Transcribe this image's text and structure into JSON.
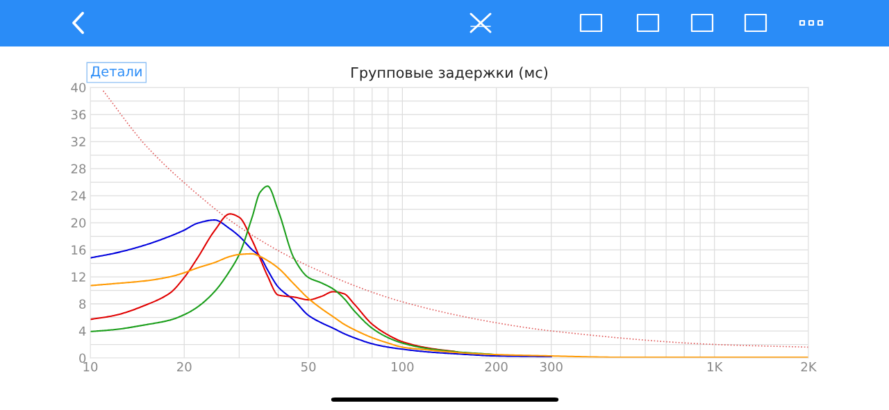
{
  "chart_data": {
    "type": "line",
    "title": "Групповые задержки (мс)",
    "annotations": [
      "Детали"
    ],
    "log": "x",
    "grid": true,
    "marker": "none",
    "xlim": [
      10,
      2000
    ],
    "ylim": [
      0,
      40
    ],
    "xticks": [
      10,
      20,
      {
        "value": 30,
        "label": null
      },
      {
        "value": 40,
        "label": null
      },
      50,
      {
        "value": 60,
        "label": null
      },
      {
        "value": 70,
        "label": null
      },
      {
        "value": 80,
        "label": null
      },
      {
        "value": 90,
        "label": null
      },
      100,
      200,
      300,
      {
        "value": 400,
        "label": null
      },
      {
        "value": 500,
        "label": null
      },
      {
        "value": 600,
        "label": null
      },
      {
        "value": 700,
        "label": null
      },
      {
        "value": 800,
        "label": null
      },
      {
        "value": 900,
        "label": null
      },
      {
        "value": 1000,
        "label": "1K"
      },
      {
        "value": 2000,
        "label": "2K"
      }
    ],
    "yticks": [
      0,
      {
        "value": 2,
        "label": null
      },
      4,
      {
        "value": 6,
        "label": null
      },
      8,
      {
        "value": 10,
        "label": null
      },
      12,
      {
        "value": 14,
        "label": null
      },
      16,
      {
        "value": 18,
        "label": null
      },
      20,
      {
        "value": 22,
        "label": null
      },
      24,
      {
        "value": 26,
        "label": null
      },
      28,
      {
        "value": 30,
        "label": null
      },
      32,
      {
        "value": 34,
        "label": null
      },
      36,
      {
        "value": 38,
        "label": null
      },
      40
    ],
    "x": [
      10,
      12,
      15,
      18,
      20,
      22,
      25,
      28,
      30,
      33,
      35,
      37,
      40,
      45,
      50,
      55,
      60,
      65,
      70,
      80,
      90,
      100,
      120,
      150,
      200,
      300,
      500,
      1000,
      2000
    ],
    "series": [
      {
        "color": "#e05a5a",
        "line_style": "dotted",
        "x": [
          11,
          15,
          20,
          30,
          50,
          100,
          200,
          300,
          1000,
          2000
        ],
        "values": [
          39.5,
          31.5,
          25.9,
          19.4,
          13.6,
          8.3,
          5.2,
          4.0,
          2.0,
          1.6
        ]
      },
      {
        "color": "#0000dd",
        "values": [
          14.8,
          15.5,
          16.7,
          18.0,
          18.9,
          19.9,
          20.4,
          19.1,
          18.0,
          16.0,
          15.0,
          13.0,
          10.5,
          8.5,
          6.3,
          5.2,
          4.4,
          3.6,
          3.0,
          2.1,
          1.6,
          1.3,
          0.9,
          0.6,
          0.3,
          0.2,
          null,
          null,
          null
        ]
      },
      {
        "color": "#e00000",
        "values": [
          5.7,
          6.3,
          7.8,
          9.6,
          11.9,
          14.7,
          18.8,
          21.3,
          20.8,
          17.4,
          14.7,
          12.1,
          9.3,
          9.0,
          8.6,
          9.1,
          9.8,
          9.5,
          8.0,
          5.0,
          3.4,
          2.4,
          1.5,
          0.9,
          null,
          null,
          null,
          null,
          null
        ]
      },
      {
        "color": "#1a9e1a",
        "values": [
          3.9,
          4.2,
          4.9,
          5.6,
          6.4,
          7.5,
          9.8,
          12.9,
          15.3,
          20.8,
          24.5,
          25.4,
          21.8,
          14.7,
          11.9,
          11.1,
          10.2,
          8.8,
          7.0,
          4.4,
          3.0,
          2.2,
          1.4,
          0.9,
          0.5,
          null,
          null,
          null,
          null
        ]
      },
      {
        "color": "#ff9900",
        "values": [
          10.7,
          11.0,
          11.4,
          12.0,
          12.6,
          13.3,
          14.1,
          15.0,
          15.3,
          15.4,
          15.0,
          14.4,
          13.3,
          10.9,
          8.8,
          7.3,
          6.1,
          5.0,
          4.2,
          3.0,
          2.2,
          1.6,
          1.2,
          0.8,
          0.5,
          0.3,
          0.1,
          0.1,
          0.1
        ]
      }
    ]
  }
}
